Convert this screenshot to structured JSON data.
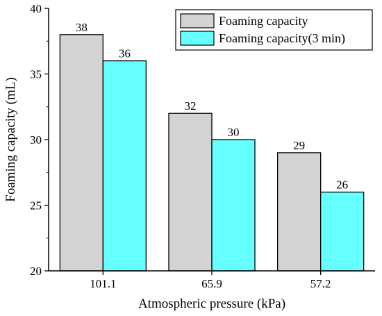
{
  "chart_data": {
    "type": "bar",
    "title": "",
    "xlabel": "Atmospheric pressure (kPa)",
    "ylabel": "Foaming capacity (mL)",
    "categories": [
      "101.1",
      "65.9",
      "57.2"
    ],
    "ylim": [
      20,
      40
    ],
    "yticks": [
      20,
      25,
      30,
      35,
      40
    ],
    "grid": false,
    "legend_position": "top-right",
    "series": [
      {
        "name": "Foaming capacity",
        "values": [
          38,
          32,
          29
        ],
        "color": "#d3d3d3"
      },
      {
        "name": "Foaming capacity(3 min)",
        "values": [
          36,
          30,
          26
        ],
        "color": "#66ffff"
      }
    ],
    "data_labels": [
      [
        "38",
        "32",
        "29"
      ],
      [
        "36",
        "30",
        "26"
      ]
    ]
  }
}
